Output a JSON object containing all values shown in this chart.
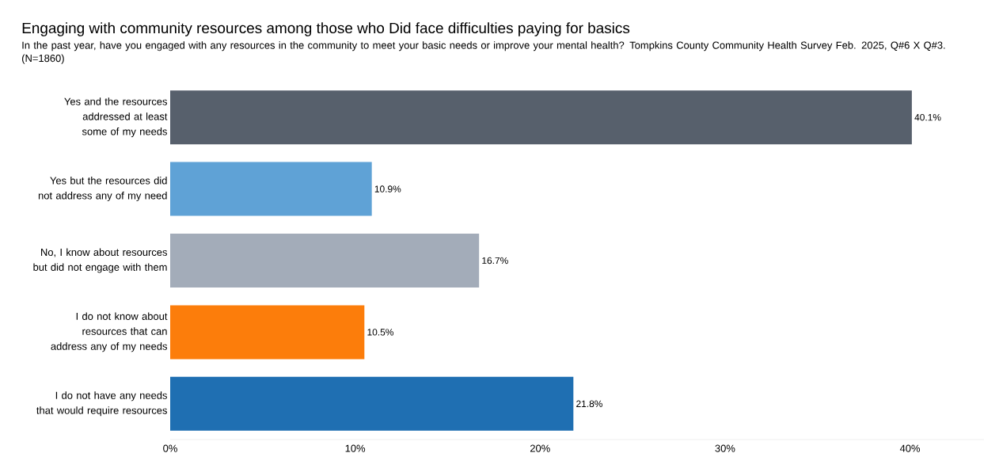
{
  "chart_data": {
    "type": "bar",
    "orientation": "horizontal",
    "title": "Engaging with community resources among those who Did face difficulties paying for basics",
    "subtitle": "In the past year, have you engaged with any resources in the community to meet your basic needs or improve your mental health? Tompkins County Community Health Survey Feb. 2025, Q#6 X Q#3. (N=1860)",
    "categories": [
      "Yes and the resources addressed at least some of my needs",
      "Yes but the resources did not address any of my need",
      "No, I know about resources but did not engage with them",
      "I do not know about resources that can address any of my needs",
      "I do not have any needs that would require resources"
    ],
    "values": [
      40.1,
      10.9,
      16.7,
      10.5,
      21.8
    ],
    "value_labels": [
      "40.1%",
      "10.9%",
      "16.7%",
      "10.5%",
      "21.8%"
    ],
    "colors": [
      "#57606c",
      "#5fa2d6",
      "#a3acb9",
      "#fc7d0b",
      "#1f6fb2"
    ],
    "xlim": [
      0,
      44
    ],
    "xticks": [
      {
        "value": 0,
        "label": "0%"
      },
      {
        "value": 10,
        "label": "10%"
      },
      {
        "value": 20,
        "label": "20%"
      },
      {
        "value": 30,
        "label": "30%"
      },
      {
        "value": 40,
        "label": "40%"
      }
    ],
    "grid": false
  }
}
